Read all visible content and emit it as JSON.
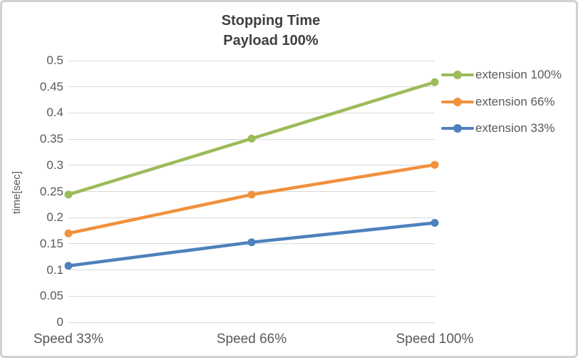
{
  "chart_data": {
    "type": "line",
    "title": "Stopping Time",
    "subtitle": "Payload 100%",
    "xlabel": "",
    "ylabel": "time[sec]",
    "categories": [
      "Speed 33%",
      "Speed 66%",
      "Speed 100%"
    ],
    "series": [
      {
        "name": "extension 100%",
        "color": "#9CBB59",
        "values": [
          0.244,
          0.351,
          0.459
        ]
      },
      {
        "name": "extension 66%",
        "color": "#F0913C",
        "values": [
          0.17,
          0.244,
          0.301
        ]
      },
      {
        "name": "extension 33%",
        "color": "#4E81BD",
        "values": [
          0.108,
          0.153,
          0.19
        ]
      }
    ],
    "ylim": [
      0,
      0.5
    ],
    "ytick_step": 0.05,
    "ytick_labels": [
      "0",
      "0.05",
      "0.1",
      "0.15",
      "0.2",
      "0.25",
      "0.3",
      "0.35",
      "0.4",
      "0.45",
      "0.5"
    ],
    "grid": true,
    "gridline_color": "#D9D9D9",
    "legend_position": "right",
    "marker": "circle",
    "text_color": "#595959",
    "title_color": "#404040"
  }
}
